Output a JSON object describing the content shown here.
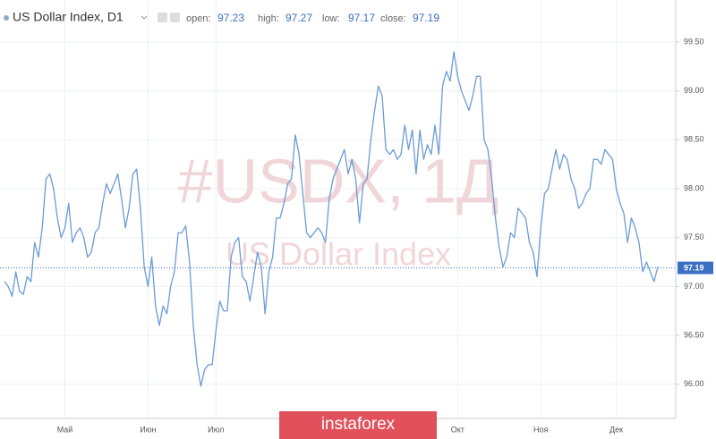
{
  "header": {
    "symbol": "US Dollar Index, D1",
    "open_label": "open:",
    "open": 97.23,
    "high_label": "high:",
    "high": 97.27,
    "low_label": "low:",
    "low": 97.17,
    "close_label": "close:",
    "close": 97.19
  },
  "watermark": {
    "ticker": "#USDX, 1Д",
    "name": "US Dollar Index"
  },
  "banner": "instaforex",
  "chart_data": {
    "type": "line",
    "color": "#6b9bd6",
    "grid": true,
    "current_value": 97.19,
    "current_value_color": "#3a6fc4",
    "ylim": [
      95.65,
      99.93
    ],
    "yticks": [
      {
        "value": 96.0,
        "label": "96.00"
      },
      {
        "value": 96.5,
        "label": "96.50"
      },
      {
        "value": 97.0,
        "label": "97.00"
      },
      {
        "value": 97.5,
        "label": "97.50"
      },
      {
        "value": 98.0,
        "label": "98.00"
      },
      {
        "value": 98.5,
        "label": "98.50"
      },
      {
        "value": 99.0,
        "label": "99.00"
      },
      {
        "value": 99.5,
        "label": "99.50"
      }
    ],
    "categories": [
      null,
      null,
      null,
      null,
      null,
      null,
      null,
      null,
      null,
      null,
      null,
      null,
      null,
      null,
      null,
      null,
      "Май",
      null,
      null,
      null,
      null,
      null,
      null,
      null,
      null,
      null,
      null,
      null,
      null,
      null,
      null,
      null,
      null,
      null,
      null,
      null,
      null,
      null,
      "Июн",
      null,
      null,
      null,
      null,
      null,
      null,
      null,
      null,
      null,
      null,
      null,
      null,
      null,
      null,
      null,
      null,
      null,
      "Июл",
      null,
      null,
      null,
      null,
      null,
      null,
      null,
      null,
      null,
      null,
      null,
      null,
      null,
      null,
      null,
      null,
      null,
      null,
      null,
      null,
      null,
      null,
      null,
      null,
      null,
      null,
      null,
      null,
      null,
      null,
      null,
      null,
      null,
      null,
      null,
      null,
      null,
      null,
      null,
      null,
      null,
      null,
      null,
      null,
      null,
      null,
      null,
      null,
      null,
      null,
      null,
      null,
      null,
      null,
      null,
      null,
      null,
      null,
      null,
      null,
      null,
      null,
      null,
      "Окт",
      null,
      null,
      null,
      null,
      null,
      null,
      null,
      null,
      null,
      null,
      null,
      null,
      null,
      null,
      null,
      null,
      null,
      null,
      null,
      null,
      null,
      "Ноя",
      null,
      null,
      null,
      null,
      null,
      null,
      null,
      null,
      null,
      null,
      null,
      null,
      null,
      null,
      null,
      null,
      null,
      null,
      null,
      "Дек",
      null,
      null,
      null,
      null,
      null,
      null,
      null,
      null,
      null,
      null,
      null
    ],
    "values": [
      97.05,
      97.0,
      96.9,
      97.15,
      96.95,
      96.92,
      97.1,
      97.05,
      97.45,
      97.3,
      97.6,
      98.1,
      98.15,
      98.0,
      97.7,
      97.5,
      97.6,
      97.85,
      97.45,
      97.55,
      97.6,
      97.5,
      97.3,
      97.35,
      97.55,
      97.6,
      97.85,
      98.05,
      97.95,
      98.05,
      98.15,
      97.9,
      97.6,
      97.8,
      98.15,
      98.2,
      97.8,
      97.2,
      97.0,
      97.3,
      96.8,
      96.6,
      96.8,
      96.72,
      97.0,
      97.15,
      97.55,
      97.55,
      97.62,
      97.25,
      96.6,
      96.2,
      95.98,
      96.15,
      96.2,
      96.2,
      96.55,
      96.85,
      96.75,
      96.75,
      97.3,
      97.45,
      97.5,
      97.1,
      97.05,
      96.85,
      97.1,
      97.35,
      97.2,
      96.72,
      97.15,
      97.3,
      97.7,
      97.7,
      97.85,
      98.05,
      98.1,
      98.55,
      98.35,
      97.95,
      97.55,
      97.5,
      97.55,
      97.6,
      97.55,
      97.45,
      97.9,
      98.1,
      98.2,
      98.3,
      98.4,
      98.15,
      98.3,
      98.1,
      97.65,
      98.05,
      98.1,
      98.5,
      98.8,
      99.05,
      98.95,
      98.4,
      98.35,
      98.4,
      98.3,
      98.35,
      98.65,
      98.4,
      98.6,
      98.15,
      98.6,
      98.3,
      98.45,
      98.35,
      98.65,
      98.35,
      99.05,
      99.2,
      99.1,
      99.4,
      99.15,
      99.0,
      98.9,
      98.8,
      98.95,
      99.15,
      99.15,
      98.5,
      98.4,
      98.1,
      97.7,
      97.4,
      97.2,
      97.3,
      97.55,
      97.5,
      97.8,
      97.75,
      97.7,
      97.45,
      97.35,
      97.1,
      97.6,
      97.95,
      98.0,
      98.2,
      98.4,
      98.2,
      98.35,
      98.3,
      98.1,
      98.0,
      97.8,
      97.85,
      97.95,
      98.0,
      98.3,
      98.3,
      98.25,
      98.4,
      98.35,
      98.3,
      98.0,
      97.85,
      97.75,
      97.45,
      97.7,
      97.6,
      97.45,
      97.15,
      97.25,
      97.15,
      97.05,
      97.2
    ]
  }
}
